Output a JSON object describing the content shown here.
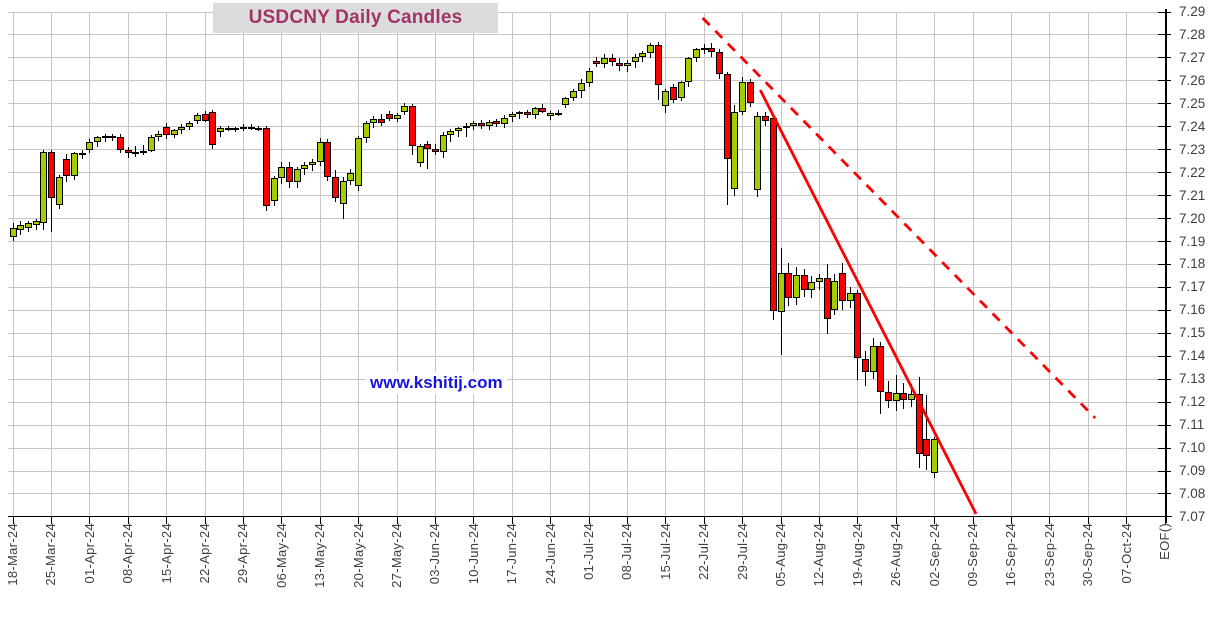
{
  "header": {
    "title": "USDCNY Daily Candles",
    "title_color": "#a03468",
    "title_bg": "#dcdcdc"
  },
  "watermark": {
    "text": "www.kshitij.com",
    "color": "#1414dd"
  },
  "chart_data": {
    "type": "candlestick",
    "title": "USDCNY Daily Candles",
    "ylim": [
      7.07,
      7.29
    ],
    "y_tick_step": 0.01,
    "grid": true,
    "y_axis_side": "right",
    "x_label_rotation": -90,
    "y_tick_labels": [
      "7.29",
      "7.28",
      "7.27",
      "7.26",
      "7.25",
      "7.24",
      "7.23",
      "7.22",
      "7.21",
      "7.20",
      "7.19",
      "7.18",
      "7.17",
      "7.16",
      "7.15",
      "7.14",
      "7.13",
      "7.12",
      "7.11",
      "7.10",
      "7.09",
      "7.08",
      "7.07"
    ],
    "x_tick_labels": [
      "18-Mar-24",
      "25-Mar-24",
      "01-Apr-24",
      "08-Apr-24",
      "15-Apr-24",
      "22-Apr-24",
      "29-Apr-24",
      "06-May-24",
      "13-May-24",
      "20-May-24",
      "27-May-24",
      "03-Jun-24",
      "10-Jun-24",
      "17-Jun-24",
      "24-Jun-24",
      "01-Jul-24",
      "08-Jul-24",
      "15-Jul-24",
      "22-Jul-24",
      "29-Jul-24",
      "05-Aug-24",
      "12-Aug-24",
      "19-Aug-24",
      "26-Aug-24",
      "02-Sep-24",
      "09-Sep-24",
      "16-Sep-24",
      "23-Sep-24",
      "30-Sep-24",
      "07-Oct-24",
      "EOF()"
    ],
    "colors": {
      "up_candle": "#a3cc02",
      "down_candle": "#fb0202",
      "candle_border": "#000000",
      "wick": "#000000",
      "grid": "#c6c6c6",
      "axis": "#000000",
      "axis_text": "#3f3f3f",
      "trendline": "#fa0202"
    },
    "candles": [
      [
        "18-Mar-24",
        7.192,
        7.198,
        7.19,
        7.196
      ],
      [
        "19-Mar-24",
        7.195,
        7.199,
        7.193,
        7.197
      ],
      [
        "20-Mar-24",
        7.196,
        7.199,
        7.194,
        7.198
      ],
      [
        "21-Mar-24",
        7.197,
        7.2,
        7.195,
        7.199
      ],
      [
        "22-Mar-24",
        7.198,
        7.23,
        7.195,
        7.229
      ],
      [
        "25-Mar-24",
        7.229,
        7.23,
        7.194,
        7.209
      ],
      [
        "26-Mar-24",
        7.206,
        7.219,
        7.204,
        7.218
      ],
      [
        "27-Mar-24",
        7.226,
        7.228,
        7.216,
        7.2185
      ],
      [
        "28-Mar-24",
        7.2185,
        7.229,
        7.217,
        7.2285
      ],
      [
        "29-Mar-24",
        7.2285,
        7.23,
        7.226,
        7.2275
      ],
      [
        "01-Apr-24",
        7.23,
        7.2345,
        7.2285,
        7.2335
      ],
      [
        "02-Apr-24",
        7.2335,
        7.236,
        7.231,
        7.2355
      ],
      [
        "03-Apr-24",
        7.2355,
        7.237,
        7.2335,
        7.236
      ],
      [
        "04-Apr-24",
        7.236,
        7.237,
        7.234,
        7.2355
      ],
      [
        "05-Apr-24",
        7.2355,
        7.237,
        7.2285,
        7.23
      ],
      [
        "08-Apr-24",
        7.23,
        7.231,
        7.2265,
        7.2285
      ],
      [
        "09-Apr-24",
        7.2285,
        7.2315,
        7.227,
        7.229
      ],
      [
        "10-Apr-24",
        7.229,
        7.232,
        7.2275,
        7.2295
      ],
      [
        "11-Apr-24",
        7.2295,
        7.2365,
        7.229,
        7.2355
      ],
      [
        "12-Apr-24",
        7.2355,
        7.238,
        7.234,
        7.237
      ],
      [
        "15-Apr-24",
        7.24,
        7.2415,
        7.2345,
        7.2365
      ],
      [
        "16-Apr-24",
        7.2365,
        7.239,
        7.235,
        7.2385
      ],
      [
        "17-Apr-24",
        7.2385,
        7.241,
        7.237,
        7.24
      ],
      [
        "18-Apr-24",
        7.24,
        7.2425,
        7.2385,
        7.2415
      ],
      [
        "19-Apr-24",
        7.2425,
        7.246,
        7.241,
        7.245
      ],
      [
        "22-Apr-24",
        7.2455,
        7.247,
        7.242,
        7.2425
      ],
      [
        "23-Apr-24",
        7.2465,
        7.2475,
        7.2305,
        7.232
      ],
      [
        "24-Apr-24",
        7.2375,
        7.2405,
        7.2355,
        7.2395
      ],
      [
        "25-Apr-24",
        7.2395,
        7.2405,
        7.238,
        7.239
      ],
      [
        "26-Apr-24",
        7.239,
        7.24,
        7.2375,
        7.2395
      ],
      [
        "29-Apr-24",
        7.2395,
        7.241,
        7.238,
        7.24
      ],
      [
        "30-Apr-24",
        7.24,
        7.241,
        7.2385,
        7.2395
      ],
      [
        "01-May-24",
        7.2395,
        7.2405,
        7.238,
        7.2395
      ],
      [
        "02-May-24",
        7.2395,
        7.2405,
        7.2035,
        7.2055
      ],
      [
        "03-May-24",
        7.2075,
        7.2185,
        7.2055,
        7.2175
      ],
      [
        "06-May-24",
        7.2175,
        7.2245,
        7.215,
        7.2225
      ],
      [
        "07-May-24",
        7.2225,
        7.2245,
        7.2135,
        7.216
      ],
      [
        "08-May-24",
        7.216,
        7.2225,
        7.2135,
        7.2215
      ],
      [
        "09-May-24",
        7.2215,
        7.2245,
        7.219,
        7.2235
      ],
      [
        "10-May-24",
        7.2235,
        7.226,
        7.2205,
        7.2245
      ],
      [
        "13-May-24",
        7.2245,
        7.235,
        7.223,
        7.2335
      ],
      [
        "14-May-24",
        7.2335,
        7.2345,
        7.2165,
        7.218
      ],
      [
        "15-May-24",
        7.218,
        7.221,
        7.207,
        7.209
      ],
      [
        "16-May-24",
        7.2065,
        7.218,
        7.2,
        7.2165
      ],
      [
        "17-May-24",
        7.2165,
        7.2215,
        7.2145,
        7.22
      ],
      [
        "20-May-24",
        7.214,
        7.236,
        7.212,
        7.235
      ],
      [
        "21-May-24",
        7.235,
        7.2425,
        7.233,
        7.2415
      ],
      [
        "22-May-24",
        7.2415,
        7.2445,
        7.2395,
        7.2435
      ],
      [
        "23-May-24",
        7.2435,
        7.2455,
        7.2405,
        7.2415
      ],
      [
        "24-May-24",
        7.2455,
        7.247,
        7.2425,
        7.2435
      ],
      [
        "27-May-24",
        7.2435,
        7.246,
        7.242,
        7.245
      ],
      [
        "28-May-24",
        7.2465,
        7.2505,
        7.245,
        7.249
      ],
      [
        "29-May-24",
        7.249,
        7.25,
        7.2275,
        7.2315
      ],
      [
        "30-May-24",
        7.224,
        7.2325,
        7.2225,
        7.2315
      ],
      [
        "31-May-24",
        7.2325,
        7.234,
        7.2215,
        7.2305
      ],
      [
        "03-Jun-24",
        7.2305,
        7.2325,
        7.2275,
        7.229
      ],
      [
        "04-Jun-24",
        7.229,
        7.2375,
        7.2265,
        7.2365
      ],
      [
        "05-Jun-24",
        7.2365,
        7.239,
        7.2335,
        7.238
      ],
      [
        "06-Jun-24",
        7.238,
        7.24,
        7.2355,
        7.2395
      ],
      [
        "07-Jun-24",
        7.2395,
        7.2415,
        7.2355,
        7.2405
      ],
      [
        "10-Jun-24",
        7.2405,
        7.2425,
        7.2385,
        7.2415
      ],
      [
        "11-Jun-24",
        7.2415,
        7.243,
        7.239,
        7.2405
      ],
      [
        "12-Jun-24",
        7.2405,
        7.243,
        7.2385,
        7.242
      ],
      [
        "13-Jun-24",
        7.2425,
        7.2435,
        7.24,
        7.241
      ],
      [
        "14-Jun-24",
        7.241,
        7.245,
        7.2395,
        7.244
      ],
      [
        "17-Jun-24",
        7.244,
        7.2465,
        7.242,
        7.2455
      ],
      [
        "18-Jun-24",
        7.2455,
        7.247,
        7.2435,
        7.2465
      ],
      [
        "19-Jun-24",
        7.2465,
        7.2475,
        7.244,
        7.245
      ],
      [
        "20-Jun-24",
        7.245,
        7.2485,
        7.2435,
        7.248
      ],
      [
        "21-Jun-24",
        7.248,
        7.25,
        7.246,
        7.2465
      ],
      [
        "24-Jun-24",
        7.2445,
        7.247,
        7.243,
        7.246
      ],
      [
        "25-Jun-24",
        7.246,
        7.2475,
        7.2445,
        7.245
      ],
      [
        "26-Jun-24",
        7.2495,
        7.253,
        7.248,
        7.2525
      ],
      [
        "27-Jun-24",
        7.2525,
        7.2565,
        7.251,
        7.2555
      ],
      [
        "28-Jun-24",
        7.2555,
        7.261,
        7.2525,
        7.259
      ],
      [
        "01-Jul-24",
        7.259,
        7.2655,
        7.2575,
        7.2645
      ],
      [
        "02-Jul-24",
        7.2685,
        7.2705,
        7.266,
        7.2675
      ],
      [
        "03-Jul-24",
        7.2675,
        7.2715,
        7.2655,
        7.27
      ],
      [
        "04-Jul-24",
        7.27,
        7.2715,
        7.2665,
        7.268
      ],
      [
        "05-Jul-24",
        7.268,
        7.27,
        7.2645,
        7.2665
      ],
      [
        "08-Jul-24",
        7.2665,
        7.269,
        7.264,
        7.268
      ],
      [
        "09-Jul-24",
        7.268,
        7.2715,
        7.2655,
        7.2705
      ],
      [
        "10-Jul-24",
        7.2705,
        7.273,
        7.268,
        7.272
      ],
      [
        "11-Jul-24",
        7.272,
        7.2765,
        7.27,
        7.2755
      ],
      [
        "12-Jul-24",
        7.2755,
        7.277,
        7.2515,
        7.258
      ],
      [
        "15-Jul-24",
        7.249,
        7.2565,
        7.246,
        7.2555
      ],
      [
        "16-Jul-24",
        7.2575,
        7.2585,
        7.2505,
        7.2515
      ],
      [
        "17-Jul-24",
        7.2525,
        7.26,
        7.251,
        7.2595
      ],
      [
        "18-Jul-24",
        7.2595,
        7.2705,
        7.2575,
        7.27
      ],
      [
        "19-Jul-24",
        7.27,
        7.2745,
        7.268,
        7.274
      ],
      [
        "22-Jul-24",
        7.274,
        7.276,
        7.2715,
        7.2745
      ],
      [
        "23-Jul-24",
        7.2745,
        7.2765,
        7.2705,
        7.2725
      ],
      [
        "24-Jul-24",
        7.2725,
        7.274,
        7.261,
        7.263
      ],
      [
        "25-Jul-24",
        7.263,
        7.264,
        7.206,
        7.226
      ],
      [
        "26-Jul-24",
        7.213,
        7.2495,
        7.21,
        7.2465
      ],
      [
        "29-Jul-24",
        7.2465,
        7.2615,
        7.245,
        7.2595
      ],
      [
        "30-Jul-24",
        7.2595,
        7.261,
        7.2485,
        7.2505
      ],
      [
        "31-Jul-24",
        7.2125,
        7.2465,
        7.2095,
        7.2445
      ],
      [
        "01-Aug-24",
        7.2445,
        7.2465,
        7.2405,
        7.2425
      ],
      [
        "02-Aug-24",
        7.244,
        7.2455,
        7.156,
        7.1595
      ],
      [
        "05-Aug-24",
        7.1595,
        7.187,
        7.1405,
        7.1765
      ],
      [
        "06-Aug-24",
        7.1765,
        7.1805,
        7.162,
        7.1655
      ],
      [
        "07-Aug-24",
        7.1655,
        7.179,
        7.1625,
        7.1755
      ],
      [
        "08-Aug-24",
        7.1755,
        7.178,
        7.166,
        7.169
      ],
      [
        "09-Aug-24",
        7.169,
        7.175,
        7.1655,
        7.1725
      ],
      [
        "12-Aug-24",
        7.1725,
        7.176,
        7.169,
        7.174
      ],
      [
        "13-Aug-24",
        7.174,
        7.18,
        7.1495,
        7.156
      ],
      [
        "14-Aug-24",
        7.16,
        7.176,
        7.158,
        7.173
      ],
      [
        "15-Aug-24",
        7.1765,
        7.1805,
        7.16,
        7.164
      ],
      [
        "16-Aug-24",
        7.164,
        7.17,
        7.161,
        7.1675
      ],
      [
        "19-Aug-24",
        7.1675,
        7.169,
        7.1295,
        7.139
      ],
      [
        "20-Aug-24",
        7.139,
        7.1425,
        7.127,
        7.133
      ],
      [
        "21-Aug-24",
        7.133,
        7.148,
        7.13,
        7.1445
      ],
      [
        "22-Aug-24",
        7.1445,
        7.146,
        7.115,
        7.1245
      ],
      [
        "23-Aug-24",
        7.1245,
        7.129,
        7.1175,
        7.1205
      ],
      [
        "26-Aug-24",
        7.1205,
        7.132,
        7.116,
        7.124
      ],
      [
        "27-Aug-24",
        7.124,
        7.1285,
        7.117,
        7.121
      ],
      [
        "28-Aug-24",
        7.121,
        7.128,
        7.118,
        7.1235
      ],
      [
        "29-Aug-24",
        7.1235,
        7.131,
        7.0915,
        7.0975
      ],
      [
        "30-Aug-24",
        7.104,
        7.123,
        7.0905,
        7.0965
      ],
      [
        "02-Sep-24",
        7.089,
        7.105,
        7.087,
        7.104
      ]
    ],
    "trendlines": [
      {
        "name": "dashed-resistance-trendline",
        "style": "dashed",
        "x1_slot": 89.8,
        "y1_price": 7.2874,
        "x2_slot": 140.9,
        "y2_price": 7.1131,
        "color": "#fa0202",
        "width": 2.8
      },
      {
        "name": "solid-support-trendline",
        "style": "solid",
        "x1_slot": 97.3,
        "y1_price": 7.256,
        "x2_slot": 125.4,
        "y2_price": 7.0713,
        "color": "#fa0202",
        "width": 2.8
      }
    ]
  }
}
